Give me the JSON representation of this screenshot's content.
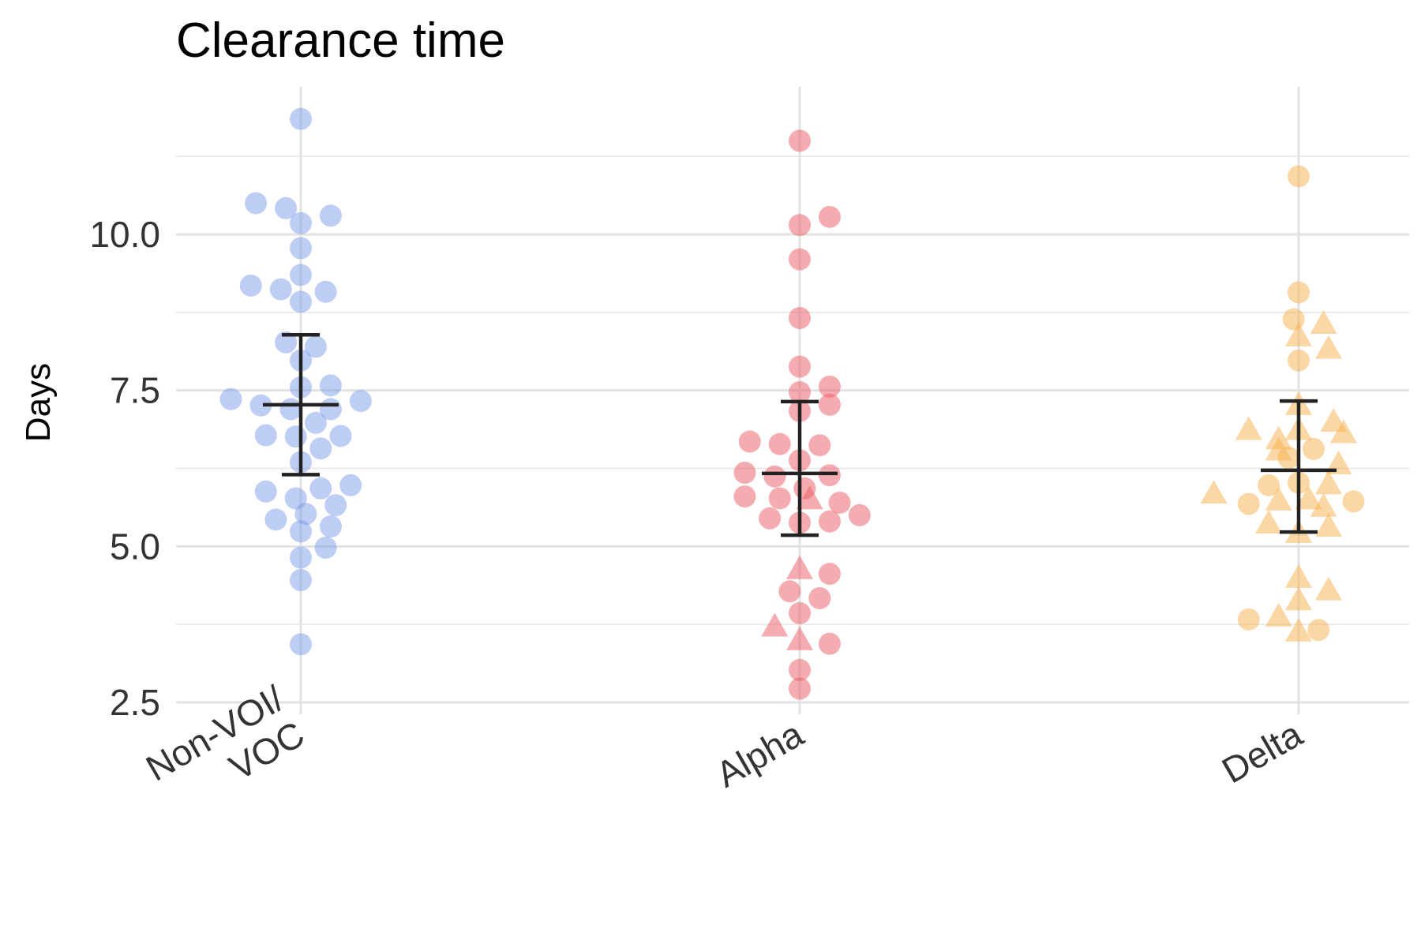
{
  "chart_data": {
    "type": "scatter",
    "title": "Clearance time",
    "ylabel": "Days",
    "xlabel": "",
    "ylim": [
      2.5,
      12.0
    ],
    "yticks": [
      2.5,
      5.0,
      7.5,
      10.0
    ],
    "ytick_labels": [
      "2.5",
      "5.0",
      "7.5",
      "10.0"
    ],
    "grid": true,
    "legend": "none",
    "categories": [
      "Non-VOI/ VOC",
      "Alpha",
      "Delta"
    ],
    "category_label_lines": [
      [
        "Non-VOI/",
        "VOC"
      ],
      [
        "Alpha"
      ],
      [
        "Delta"
      ]
    ],
    "series": [
      {
        "category": "Non-VOI/ VOC",
        "color": "#7b9be8",
        "points": [
          {
            "x": 0.0,
            "y": 11.85,
            "shape": "circle"
          },
          {
            "x": -0.09,
            "y": 10.5,
            "shape": "circle"
          },
          {
            "x": -0.03,
            "y": 10.42,
            "shape": "circle"
          },
          {
            "x": 0.0,
            "y": 10.18,
            "shape": "circle"
          },
          {
            "x": 0.06,
            "y": 10.3,
            "shape": "circle"
          },
          {
            "x": 0.0,
            "y": 9.78,
            "shape": "circle"
          },
          {
            "x": 0.0,
            "y": 9.35,
            "shape": "circle"
          },
          {
            "x": -0.1,
            "y": 9.18,
            "shape": "circle"
          },
          {
            "x": -0.04,
            "y": 9.12,
            "shape": "circle"
          },
          {
            "x": 0.05,
            "y": 9.08,
            "shape": "circle"
          },
          {
            "x": 0.0,
            "y": 8.92,
            "shape": "circle"
          },
          {
            "x": -0.03,
            "y": 8.27,
            "shape": "circle"
          },
          {
            "x": 0.03,
            "y": 8.2,
            "shape": "circle"
          },
          {
            "x": 0.0,
            "y": 7.98,
            "shape": "circle"
          },
          {
            "x": 0.0,
            "y": 7.55,
            "shape": "circle"
          },
          {
            "x": 0.06,
            "y": 7.58,
            "shape": "circle"
          },
          {
            "x": -0.14,
            "y": 7.36,
            "shape": "circle"
          },
          {
            "x": 0.12,
            "y": 7.33,
            "shape": "circle"
          },
          {
            "x": -0.08,
            "y": 7.26,
            "shape": "circle"
          },
          {
            "x": -0.02,
            "y": 7.2,
            "shape": "circle"
          },
          {
            "x": 0.06,
            "y": 7.2,
            "shape": "circle"
          },
          {
            "x": 0.03,
            "y": 6.98,
            "shape": "circle"
          },
          {
            "x": -0.07,
            "y": 6.78,
            "shape": "circle"
          },
          {
            "x": -0.01,
            "y": 6.76,
            "shape": "circle"
          },
          {
            "x": 0.08,
            "y": 6.77,
            "shape": "circle"
          },
          {
            "x": 0.04,
            "y": 6.57,
            "shape": "circle"
          },
          {
            "x": 0.0,
            "y": 6.35,
            "shape": "circle"
          },
          {
            "x": 0.1,
            "y": 5.98,
            "shape": "circle"
          },
          {
            "x": -0.07,
            "y": 5.88,
            "shape": "circle"
          },
          {
            "x": 0.04,
            "y": 5.93,
            "shape": "circle"
          },
          {
            "x": -0.01,
            "y": 5.77,
            "shape": "circle"
          },
          {
            "x": 0.07,
            "y": 5.66,
            "shape": "circle"
          },
          {
            "x": 0.01,
            "y": 5.52,
            "shape": "circle"
          },
          {
            "x": -0.05,
            "y": 5.43,
            "shape": "circle"
          },
          {
            "x": 0.06,
            "y": 5.32,
            "shape": "circle"
          },
          {
            "x": 0.0,
            "y": 5.24,
            "shape": "circle"
          },
          {
            "x": 0.05,
            "y": 4.98,
            "shape": "circle"
          },
          {
            "x": 0.0,
            "y": 4.82,
            "shape": "circle"
          },
          {
            "x": 0.0,
            "y": 4.46,
            "shape": "circle"
          },
          {
            "x": 0.0,
            "y": 3.43,
            "shape": "circle"
          }
        ],
        "mean": 7.27,
        "error_low": 6.15,
        "error_high": 8.39
      },
      {
        "category": "Alpha",
        "color": "#ec5a62",
        "points": [
          {
            "x": 0.0,
            "y": 11.5,
            "shape": "circle"
          },
          {
            "x": 0.0,
            "y": 10.15,
            "shape": "circle"
          },
          {
            "x": 0.06,
            "y": 10.28,
            "shape": "circle"
          },
          {
            "x": 0.0,
            "y": 9.6,
            "shape": "circle"
          },
          {
            "x": 0.0,
            "y": 8.66,
            "shape": "circle"
          },
          {
            "x": 0.0,
            "y": 7.88,
            "shape": "circle"
          },
          {
            "x": 0.06,
            "y": 7.56,
            "shape": "circle"
          },
          {
            "x": 0.0,
            "y": 7.47,
            "shape": "circle"
          },
          {
            "x": 0.06,
            "y": 7.27,
            "shape": "circle"
          },
          {
            "x": 0.0,
            "y": 7.17,
            "shape": "circle"
          },
          {
            "x": -0.1,
            "y": 6.68,
            "shape": "circle"
          },
          {
            "x": -0.04,
            "y": 6.64,
            "shape": "circle"
          },
          {
            "x": 0.04,
            "y": 6.62,
            "shape": "circle"
          },
          {
            "x": 0.0,
            "y": 6.38,
            "shape": "circle"
          },
          {
            "x": -0.11,
            "y": 6.18,
            "shape": "circle"
          },
          {
            "x": -0.05,
            "y": 6.12,
            "shape": "circle"
          },
          {
            "x": 0.06,
            "y": 6.14,
            "shape": "circle"
          },
          {
            "x": 0.01,
            "y": 5.93,
            "shape": "circle"
          },
          {
            "x": -0.11,
            "y": 5.8,
            "shape": "circle"
          },
          {
            "x": -0.04,
            "y": 5.77,
            "shape": "circle"
          },
          {
            "x": 0.02,
            "y": 5.74,
            "shape": "triangle"
          },
          {
            "x": 0.08,
            "y": 5.7,
            "shape": "circle"
          },
          {
            "x": -0.06,
            "y": 5.45,
            "shape": "circle"
          },
          {
            "x": 0.0,
            "y": 5.38,
            "shape": "circle"
          },
          {
            "x": 0.06,
            "y": 5.4,
            "shape": "circle"
          },
          {
            "x": 0.12,
            "y": 5.5,
            "shape": "circle"
          },
          {
            "x": 0.0,
            "y": 4.62,
            "shape": "triangle"
          },
          {
            "x": 0.06,
            "y": 4.56,
            "shape": "circle"
          },
          {
            "x": -0.02,
            "y": 4.28,
            "shape": "circle"
          },
          {
            "x": 0.04,
            "y": 4.17,
            "shape": "circle"
          },
          {
            "x": 0.0,
            "y": 3.93,
            "shape": "circle"
          },
          {
            "x": -0.05,
            "y": 3.7,
            "shape": "triangle"
          },
          {
            "x": 0.0,
            "y": 3.48,
            "shape": "triangle"
          },
          {
            "x": 0.06,
            "y": 3.44,
            "shape": "circle"
          },
          {
            "x": 0.0,
            "y": 3.02,
            "shape": "circle"
          },
          {
            "x": 0.0,
            "y": 2.72,
            "shape": "circle"
          }
        ],
        "mean": 6.17,
        "error_low": 5.18,
        "error_high": 7.32
      },
      {
        "category": "Delta",
        "color": "#f7b04c",
        "points": [
          {
            "x": 0.0,
            "y": 10.93,
            "shape": "circle"
          },
          {
            "x": 0.0,
            "y": 9.07,
            "shape": "circle"
          },
          {
            "x": -0.01,
            "y": 8.64,
            "shape": "circle"
          },
          {
            "x": 0.05,
            "y": 8.55,
            "shape": "triangle"
          },
          {
            "x": 0.0,
            "y": 8.35,
            "shape": "triangle"
          },
          {
            "x": 0.06,
            "y": 8.15,
            "shape": "triangle"
          },
          {
            "x": 0.0,
            "y": 7.98,
            "shape": "circle"
          },
          {
            "x": 0.0,
            "y": 7.25,
            "shape": "triangle"
          },
          {
            "x": 0.07,
            "y": 6.98,
            "shape": "triangle"
          },
          {
            "x": -0.1,
            "y": 6.85,
            "shape": "triangle"
          },
          {
            "x": 0.0,
            "y": 6.85,
            "shape": "triangle"
          },
          {
            "x": -0.04,
            "y": 6.7,
            "shape": "triangle"
          },
          {
            "x": 0.09,
            "y": 6.8,
            "shape": "triangle"
          },
          {
            "x": 0.03,
            "y": 6.56,
            "shape": "circle"
          },
          {
            "x": -0.02,
            "y": 6.42,
            "shape": "circle"
          },
          {
            "x": -0.04,
            "y": 6.52,
            "shape": "triangle"
          },
          {
            "x": 0.08,
            "y": 6.3,
            "shape": "triangle"
          },
          {
            "x": -0.06,
            "y": 5.98,
            "shape": "circle"
          },
          {
            "x": 0.0,
            "y": 6.02,
            "shape": "circle"
          },
          {
            "x": 0.06,
            "y": 5.98,
            "shape": "triangle"
          },
          {
            "x": -0.17,
            "y": 5.83,
            "shape": "triangle"
          },
          {
            "x": -0.1,
            "y": 5.68,
            "shape": "circle"
          },
          {
            "x": -0.04,
            "y": 5.72,
            "shape": "triangle"
          },
          {
            "x": 0.02,
            "y": 5.74,
            "shape": "triangle"
          },
          {
            "x": 0.11,
            "y": 5.72,
            "shape": "circle"
          },
          {
            "x": 0.05,
            "y": 5.62,
            "shape": "triangle"
          },
          {
            "x": -0.06,
            "y": 5.35,
            "shape": "triangle"
          },
          {
            "x": 0.0,
            "y": 5.2,
            "shape": "triangle"
          },
          {
            "x": 0.06,
            "y": 5.3,
            "shape": "triangle"
          },
          {
            "x": 0.0,
            "y": 4.48,
            "shape": "triangle"
          },
          {
            "x": 0.06,
            "y": 4.28,
            "shape": "triangle"
          },
          {
            "x": 0.0,
            "y": 4.12,
            "shape": "triangle"
          },
          {
            "x": -0.1,
            "y": 3.83,
            "shape": "circle"
          },
          {
            "x": -0.04,
            "y": 3.86,
            "shape": "triangle"
          },
          {
            "x": 0.0,
            "y": 3.62,
            "shape": "triangle"
          },
          {
            "x": 0.04,
            "y": 3.66,
            "shape": "circle"
          }
        ],
        "mean": 6.22,
        "error_low": 5.23,
        "error_high": 7.33
      }
    ]
  }
}
